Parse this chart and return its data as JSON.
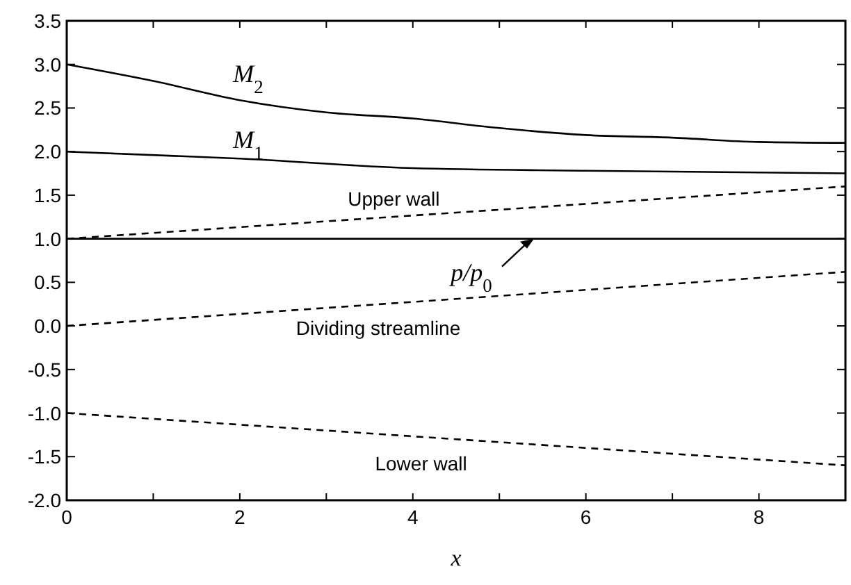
{
  "chart_data": {
    "type": "line",
    "xlabel": "x",
    "xlim": [
      0,
      9
    ],
    "ylim": [
      -2,
      3.5
    ],
    "xticks": [
      0,
      {
        "value": 1,
        "label": null
      },
      2,
      {
        "value": 3,
        "label": null
      },
      4,
      {
        "value": 5,
        "label": null
      },
      6,
      {
        "value": 7,
        "label": null
      },
      8,
      {
        "value": 9,
        "label": null
      }
    ],
    "yticks": [
      {
        "value": -2,
        "label": "-2.0"
      },
      {
        "value": -1.5,
        "label": "-1.5"
      },
      {
        "value": -1,
        "label": "-1.0"
      },
      {
        "value": -0.5,
        "label": "-0.5"
      },
      {
        "value": 0,
        "label": "0.0"
      },
      {
        "value": 0.5,
        "label": "0.5"
      },
      {
        "value": 1,
        "label": "1.0"
      },
      {
        "value": 1.5,
        "label": "1.5"
      },
      {
        "value": 2,
        "label": "2.0"
      },
      {
        "value": 2.5,
        "label": "2.5"
      },
      {
        "value": 3,
        "label": "3.0"
      },
      {
        "value": 3.5,
        "label": "3.5"
      }
    ],
    "grid": false,
    "marker": "none",
    "series": [
      {
        "name": "M$_{2}$",
        "color": "#000000",
        "line_style": "solid",
        "x": [
          0,
          1,
          2,
          3,
          4,
          5,
          6,
          7,
          8,
          9
        ],
        "values": [
          3.0,
          2.81,
          2.59,
          2.45,
          2.38,
          2.27,
          2.19,
          2.16,
          2.11,
          2.1
        ]
      },
      {
        "name": "M$_{1}$",
        "color": "#000000",
        "line_style": "solid",
        "x": [
          0,
          2,
          4,
          6,
          9
        ],
        "values": [
          2.0,
          1.92,
          1.81,
          1.78,
          1.75
        ]
      },
      {
        "name": "p/p$_{0}$",
        "color": "#000000",
        "line_style": "solid",
        "x": [
          0,
          9
        ],
        "values": [
          1.0,
          1.0
        ]
      },
      {
        "name": "Upper wall",
        "color": "#000000",
        "line_style": "dashed",
        "x": [
          0,
          9
        ],
        "values": [
          1.0,
          1.6
        ]
      },
      {
        "name": "Dividing streamline",
        "color": "#000000",
        "line_style": "dashed",
        "x": [
          0,
          9
        ],
        "values": [
          0,
          0.62
        ]
      },
      {
        "name": "Lower wall",
        "color": "#000000",
        "line_style": "dashed",
        "x": [
          0,
          9
        ],
        "values": [
          -1.0,
          -1.6
        ]
      }
    ]
  }
}
